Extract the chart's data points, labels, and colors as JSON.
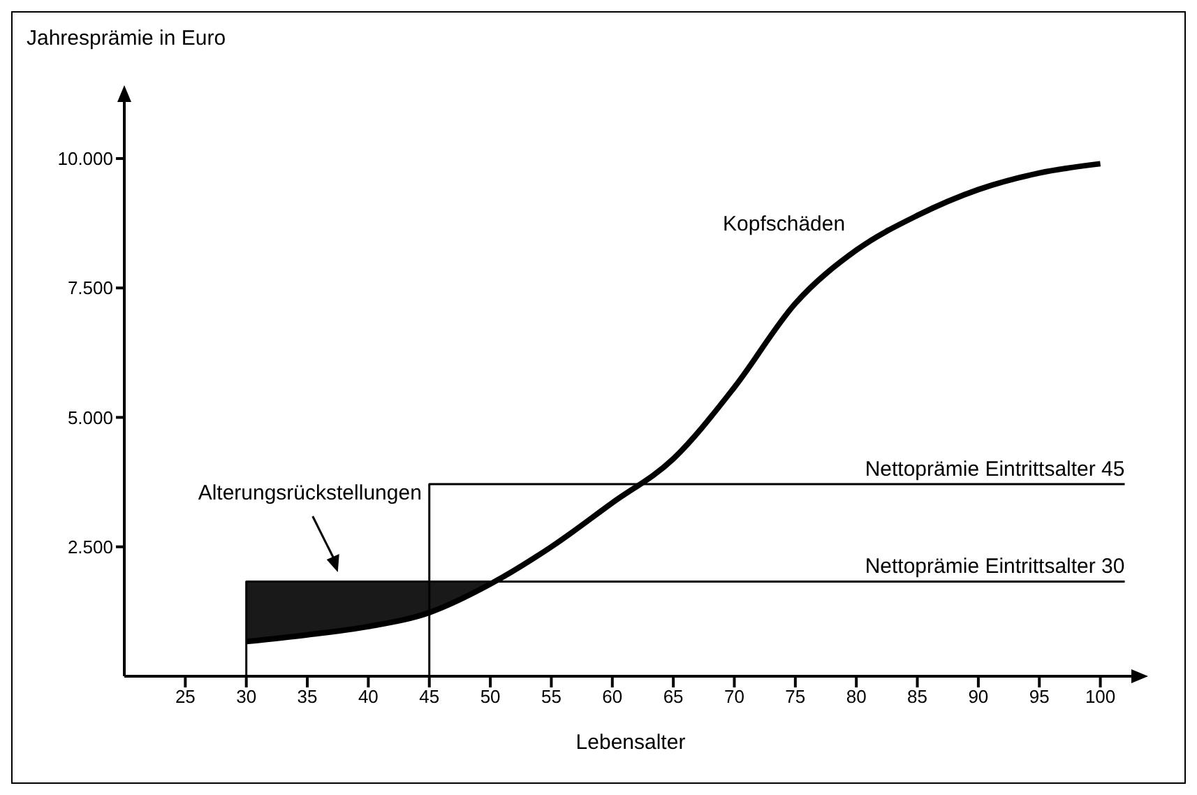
{
  "chart_data": {
    "type": "line",
    "xlabel": "Lebensalter",
    "ylabel": "Jahresprämie in Euro",
    "xlim": [
      20,
      103
    ],
    "ylim": [
      0,
      11200
    ],
    "xticks": [
      25,
      30,
      35,
      40,
      45,
      50,
      55,
      60,
      65,
      70,
      75,
      80,
      85,
      90,
      95,
      100
    ],
    "yticks": [
      {
        "value": 2500,
        "label": "2.500"
      },
      {
        "value": 5000,
        "label": "5.000"
      },
      {
        "value": 7500,
        "label": "7.500"
      },
      {
        "value": 10000,
        "label": "10.000"
      }
    ],
    "line_style": "solid",
    "marker": "none",
    "annotations": [
      "Alterungsrückstellungen"
    ],
    "series": [
      {
        "name": "Kopfschäden",
        "color": "#000000",
        "x": [
          30,
          35,
          40,
          45,
          50,
          55,
          60,
          65,
          70,
          75,
          80,
          85,
          90,
          95,
          100
        ],
        "values": [
          670,
          800,
          960,
          1230,
          1780,
          2500,
          3350,
          4200,
          5580,
          7200,
          8230,
          8900,
          9400,
          9720,
          9900
        ],
        "lower": [
          670,
          800,
          960,
          1230,
          1780,
          null,
          null,
          null,
          null,
          null,
          null,
          null,
          null,
          null,
          null
        ],
        "upper": [
          1830,
          1830,
          1830,
          1830,
          1830,
          null,
          null,
          null,
          null,
          null,
          null,
          null,
          null,
          null,
          null
        ]
      },
      {
        "name": "Nettoprämie Eintrittsalter 45",
        "color": "#000000",
        "x": [
          45,
          45,
          102
        ],
        "values": [
          0,
          3710,
          3710
        ]
      },
      {
        "name": "Nettoprämie Eintrittsalter 30",
        "color": "#000000",
        "x": [
          30,
          30,
          102
        ],
        "values": [
          0,
          1830,
          1830
        ]
      }
    ]
  }
}
